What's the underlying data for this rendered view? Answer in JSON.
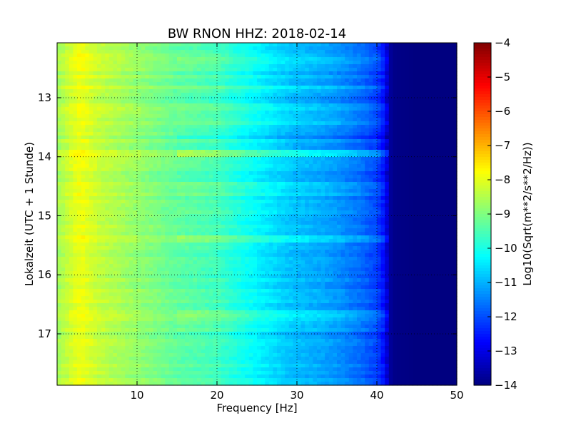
{
  "chart_data": {
    "type": "heatmap",
    "title": "BW RNON HHZ: 2018-02-14",
    "xlabel": "Frequency [Hz]",
    "ylabel": "Lokalzeit (UTC + 1 Stunde)",
    "xlim": [
      0,
      50
    ],
    "ylim": [
      12.07,
      17.87
    ],
    "y_inverted": true,
    "x_ticks": [
      10,
      20,
      30,
      40,
      50
    ],
    "x_tick_labels": [
      "10",
      "20",
      "30",
      "40",
      "50"
    ],
    "y_ticks": [
      13,
      14,
      15,
      16,
      17
    ],
    "y_tick_labels": [
      "13",
      "14",
      "15",
      "16",
      "17"
    ],
    "grid": true,
    "colormap": "jet",
    "colorbar": {
      "label": "Log10(Sqrt(m**2/s**2/Hz))",
      "range": [
        -14,
        -4
      ],
      "ticks": [
        -4,
        -5,
        -6,
        -7,
        -8,
        -9,
        -10,
        -11,
        -12,
        -13,
        -14
      ],
      "tick_labels": [
        "−4",
        "−5",
        "−6",
        "−7",
        "−8",
        "−9",
        "−10",
        "−11",
        "−12",
        "−13",
        "−14"
      ]
    },
    "frequency_profile": {
      "frequency_hz": [
        0,
        1,
        2,
        3,
        5,
        8,
        10,
        15,
        20,
        22,
        25,
        28,
        30,
        33,
        35,
        38,
        40,
        41,
        41.5,
        42,
        45,
        50
      ],
      "level": [
        -8.7,
        -8.4,
        -8.1,
        -7.9,
        -8.3,
        -8.6,
        -8.8,
        -9.3,
        -9.6,
        -9.9,
        -10.3,
        -10.7,
        -10.9,
        -11.1,
        -11.3,
        -11.7,
        -12.1,
        -12.7,
        -13.6,
        -13.9,
        -14,
        -14
      ]
    },
    "bands": [
      {
        "hour": 12.35,
        "level_offset": 0.3
      },
      {
        "hour": 12.85,
        "level_offset": 0.25
      },
      {
        "hour": 13.15,
        "level_offset": 0.2
      },
      {
        "hour": 13.4,
        "level_offset": 0.3
      },
      {
        "hour": 13.62,
        "level_offset": -0.3
      },
      {
        "hour": 13.95,
        "level_offset": 0.7
      },
      {
        "hour": 14.5,
        "level_offset": 0.3
      },
      {
        "hour": 14.62,
        "level_offset": 0.25
      },
      {
        "hour": 14.9,
        "level_offset": 0.2
      },
      {
        "hour": 15.4,
        "level_offset": 0.5
      },
      {
        "hour": 16.68,
        "level_offset": 0.5
      },
      {
        "hour": 16.78,
        "level_offset": 0.3
      },
      {
        "hour": 16.88,
        "level_offset": 0.2
      }
    ]
  }
}
